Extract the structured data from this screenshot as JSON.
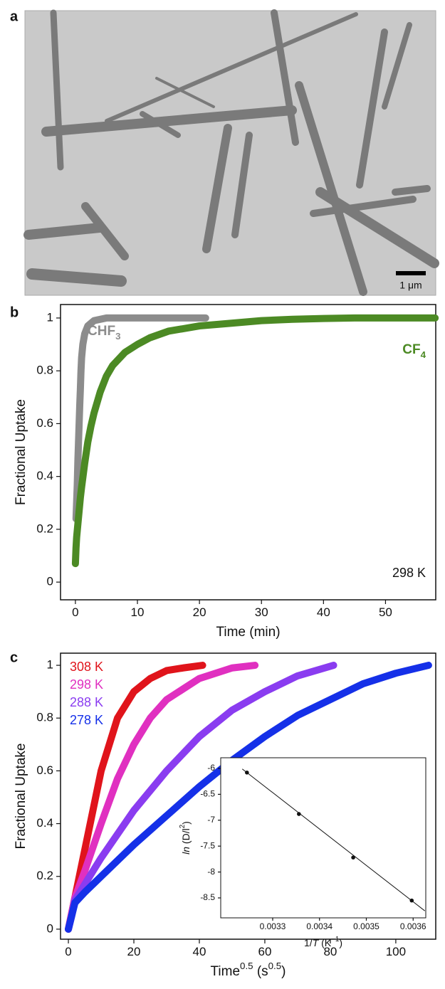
{
  "panel_labels": [
    "a",
    "b",
    "c"
  ],
  "image": {
    "scale_bar": "1 μm"
  },
  "chart_data": [
    {
      "type": "scatter",
      "xlabel": "Time (min)",
      "ylabel": "Fractional Uptake",
      "xlim": [
        -2.4,
        58.1
      ],
      "ylim": [
        -0.067,
        1.051
      ],
      "xticks": [
        0,
        10,
        20,
        30,
        40,
        50
      ],
      "yticks": [
        0,
        0.2,
        0.4,
        0.6,
        0.8,
        1
      ],
      "annotation": "298 K",
      "series": [
        {
          "name": [
            "CHF",
            "3"
          ],
          "color": "#8c8c8c",
          "x": [
            0.1,
            0.3,
            0.4,
            0.5,
            0.6,
            0.7,
            0.8,
            0.9,
            1.0,
            1.2,
            1.5,
            2,
            3,
            5,
            8,
            12,
            16,
            21
          ],
          "values": [
            0.24,
            0.37,
            0.46,
            0.53,
            0.6,
            0.67,
            0.73,
            0.8,
            0.85,
            0.9,
            0.94,
            0.97,
            0.99,
            1,
            1,
            1,
            1,
            1
          ]
        },
        {
          "name": [
            "CF",
            "4"
          ],
          "color": "#4c8a24",
          "x": [
            0,
            0.1,
            0.2,
            0.4,
            0.6,
            0.8,
            1,
            1.5,
            2,
            2.5,
            3,
            4,
            5,
            6,
            8,
            10,
            12,
            15,
            20,
            25,
            30,
            35,
            40,
            45,
            50,
            55,
            58
          ],
          "values": [
            0.07,
            0.13,
            0.17,
            0.22,
            0.27,
            0.32,
            0.36,
            0.45,
            0.53,
            0.59,
            0.64,
            0.72,
            0.78,
            0.82,
            0.87,
            0.9,
            0.925,
            0.95,
            0.97,
            0.98,
            0.99,
            0.995,
            0.998,
            1,
            1,
            1,
            1
          ]
        }
      ]
    },
    {
      "type": "scatter",
      "xlabel": [
        "Time",
        "0.5",
        " (s",
        "0.5",
        ")"
      ],
      "ylabel": "Fractional Uptake",
      "xlim": [
        -2.4,
        112.2
      ],
      "ylim": [
        -0.038,
        1.046
      ],
      "xticks": [
        0,
        20,
        40,
        60,
        80,
        100
      ],
      "yticks": [
        0,
        0.2,
        0.4,
        0.6,
        0.8,
        1
      ],
      "series": [
        {
          "name": "308 K",
          "color": "#e0141b",
          "x": [
            0,
            1,
            2,
            5,
            10,
            15,
            20,
            25,
            30,
            35,
            41
          ],
          "values": [
            0,
            0.06,
            0.12,
            0.3,
            0.6,
            0.8,
            0.9,
            0.95,
            0.98,
            0.99,
            1
          ]
        },
        {
          "name": "298 K",
          "color": "#e030c0",
          "x": [
            0,
            1,
            2,
            5,
            10,
            15,
            20,
            25,
            30,
            40,
            50,
            57
          ],
          "values": [
            0,
            0.06,
            0.12,
            0.22,
            0.4,
            0.57,
            0.7,
            0.8,
            0.87,
            0.95,
            0.99,
            1
          ]
        },
        {
          "name": "288 K",
          "color": "#8a3cf0",
          "x": [
            0,
            1,
            2,
            5,
            10,
            20,
            30,
            40,
            50,
            60,
            70,
            81
          ],
          "values": [
            0,
            0.05,
            0.11,
            0.17,
            0.27,
            0.45,
            0.6,
            0.73,
            0.83,
            0.9,
            0.96,
            1
          ]
        },
        {
          "name": "278 K",
          "color": "#1530e8",
          "x": [
            0,
            1,
            2,
            5,
            10,
            20,
            30,
            40,
            50,
            60,
            70,
            80,
            90,
            100,
            110
          ],
          "values": [
            0,
            0.05,
            0.1,
            0.14,
            0.2,
            0.32,
            0.43,
            0.54,
            0.64,
            0.73,
            0.81,
            0.87,
            0.93,
            0.97,
            1
          ]
        }
      ]
    },
    {
      "type": "scatter",
      "xlabel": [
        "1/",
        "T",
        " (K",
        "−1",
        ")"
      ],
      "ylabel": [
        "ln",
        " (D/l",
        "2",
        ")"
      ],
      "xlim": [
        0.003189,
        0.003627
      ],
      "ylim": [
        -8.885,
        -5.794
      ],
      "xticks": [
        0.0033,
        0.0034,
        0.0035,
        0.0036
      ],
      "yticks": [
        -6,
        -6.5,
        -7,
        -7.5,
        -8,
        -8.5
      ],
      "series": [
        {
          "color": "#111111",
          "x": [
            0.003245,
            0.003356,
            0.003472,
            0.003597
          ],
          "values": [
            -6.08,
            -6.88,
            -7.72,
            -8.55
          ]
        }
      ],
      "fit_line": {
        "x": [
          0.003235,
          0.003625
        ],
        "values": [
          -6.01,
          -8.75
        ]
      }
    }
  ]
}
